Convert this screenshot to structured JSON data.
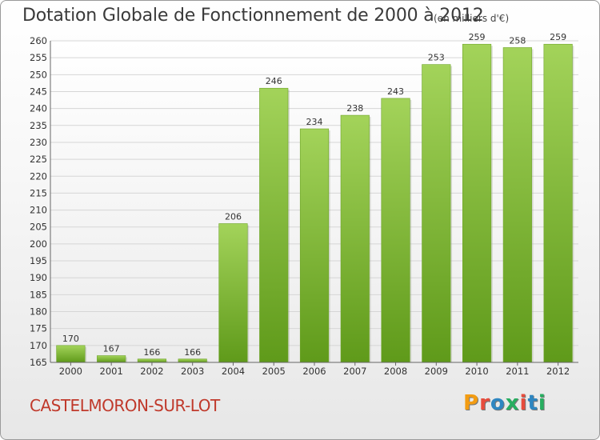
{
  "header": {
    "title": "Dotation Globale de Fonctionnement de 2000 à 2012",
    "unit": "(en milliers d'€)"
  },
  "footer": {
    "commune": "CASTELMORON-SUR-LOT",
    "logo": "Proxiti"
  },
  "colors": {
    "bar_light": "#a3d35a",
    "bar_dark": "#5f9a1a",
    "logo_letters": [
      "#f39c12",
      "#e74c3c",
      "#2e86c1",
      "#27ae60",
      "#e74c3c",
      "#2e86c1",
      "#27ae60"
    ]
  },
  "chart_data": {
    "type": "bar",
    "title": "Dotation Globale de Fonctionnement de 2000 à 2012",
    "subtitle": "(en milliers d'€)",
    "categories": [
      "2000",
      "2001",
      "2002",
      "2003",
      "2004",
      "2005",
      "2006",
      "2007",
      "2008",
      "2009",
      "2010",
      "2011",
      "2012"
    ],
    "values": [
      170,
      167,
      166,
      166,
      206,
      246,
      234,
      238,
      243,
      253,
      259,
      258,
      259
    ],
    "ylim": [
      165,
      260
    ],
    "yticks": [
      165,
      170,
      175,
      180,
      185,
      190,
      195,
      200,
      205,
      210,
      215,
      220,
      225,
      230,
      235,
      240,
      245,
      250,
      255,
      260
    ],
    "grid": true,
    "legend": "none"
  }
}
